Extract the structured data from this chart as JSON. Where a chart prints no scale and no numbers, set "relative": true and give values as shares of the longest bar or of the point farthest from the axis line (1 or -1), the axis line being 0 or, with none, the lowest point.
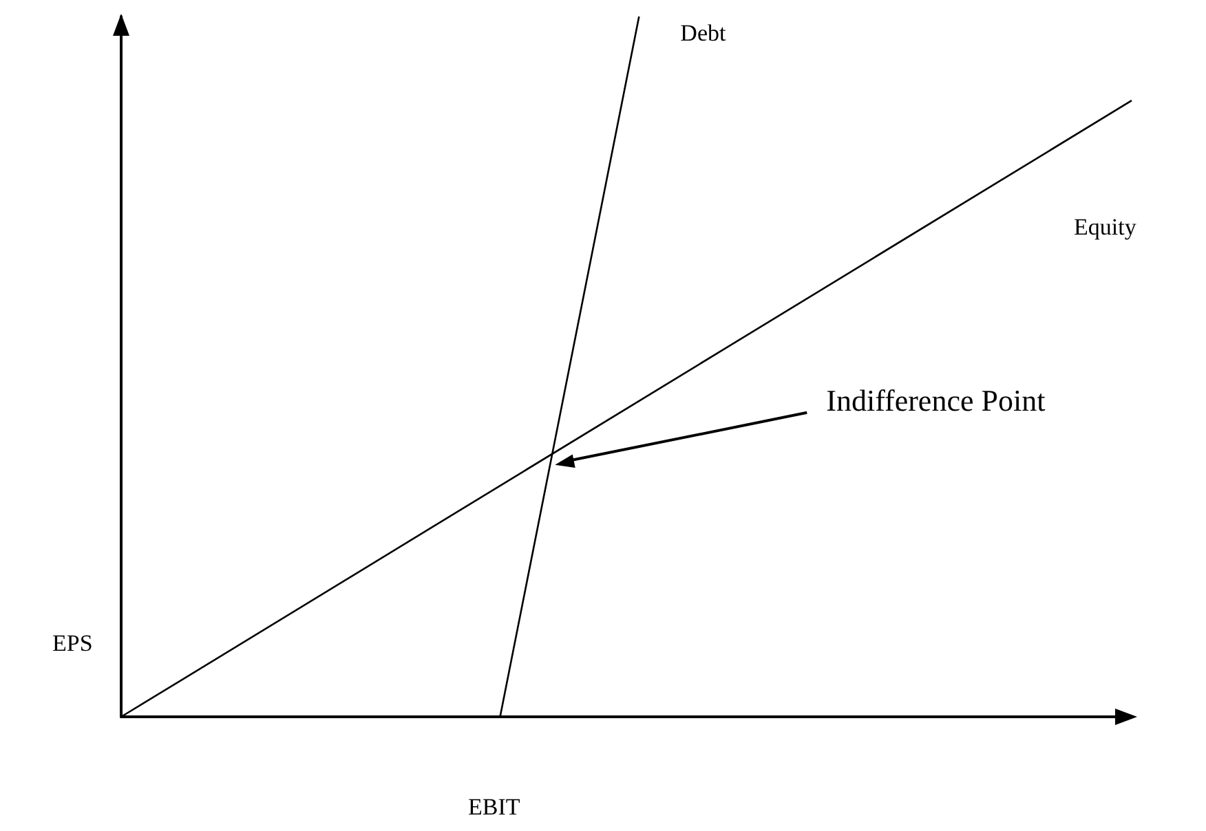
{
  "chart_data": {
    "type": "line",
    "relative": true,
    "xlabel": "EBIT",
    "ylabel": "EPS",
    "tick_labels": false,
    "grid": false,
    "legend": false,
    "marker": "none",
    "line_style": "solid",
    "categories": [
      null,
      null,
      null,
      null,
      null,
      null,
      null,
      null,
      null,
      null,
      null,
      null,
      null,
      null,
      null,
      null,
      null,
      null,
      null,
      null,
      null,
      null,
      null,
      null,
      null,
      null,
      null,
      null,
      null,
      null,
      null,
      null,
      null,
      null,
      null,
      null,
      null,
      null,
      null,
      null,
      null,
      null,
      null,
      null,
      null,
      null,
      null,
      null,
      null,
      null,
      null,
      null,
      null,
      null,
      null,
      null,
      null,
      null,
      null,
      null,
      null,
      null,
      null,
      null,
      null,
      null,
      null,
      null,
      null,
      null,
      null,
      null,
      null,
      null,
      null,
      null,
      null,
      null,
      null,
      null,
      null
    ],
    "series": [
      {
        "name": "Debt",
        "color": "#000000",
        "values": [
          null,
          null,
          null,
          null,
          null,
          null,
          null,
          null,
          null,
          null,
          null,
          null,
          null,
          null,
          null,
          null,
          null,
          null,
          null,
          null,
          null,
          null,
          null,
          null,
          null,
          null,
          null,
          null,
          null,
          null,
          0,
          null,
          null,
          null,
          null,
          null,
          null,
          null,
          null,
          null,
          null,
          1,
          null,
          null,
          null,
          null,
          null,
          null,
          null,
          null,
          null,
          null,
          null,
          null,
          null,
          null,
          null,
          null,
          null,
          null,
          null,
          null,
          null,
          null,
          null,
          null,
          null,
          null,
          null,
          null,
          null,
          null,
          null,
          null,
          null,
          null,
          null,
          null,
          null,
          null,
          null
        ]
      },
      {
        "name": "Equity",
        "color": "#000000",
        "values": [
          0,
          null,
          null,
          null,
          null,
          null,
          null,
          null,
          null,
          null,
          null,
          null,
          null,
          null,
          null,
          null,
          null,
          null,
          null,
          null,
          null,
          null,
          null,
          null,
          null,
          null,
          null,
          null,
          null,
          null,
          null,
          null,
          null,
          null,
          null,
          null,
          null,
          null,
          null,
          null,
          null,
          null,
          null,
          null,
          null,
          null,
          null,
          null,
          null,
          null,
          null,
          null,
          null,
          null,
          null,
          null,
          null,
          null,
          null,
          null,
          null,
          null,
          null,
          null,
          null,
          null,
          null,
          null,
          null,
          null,
          null,
          null,
          null,
          null,
          null,
          null,
          null,
          null,
          null,
          null,
          0.88
        ]
      }
    ],
    "annotations": [
      "Indifference Point"
    ]
  }
}
